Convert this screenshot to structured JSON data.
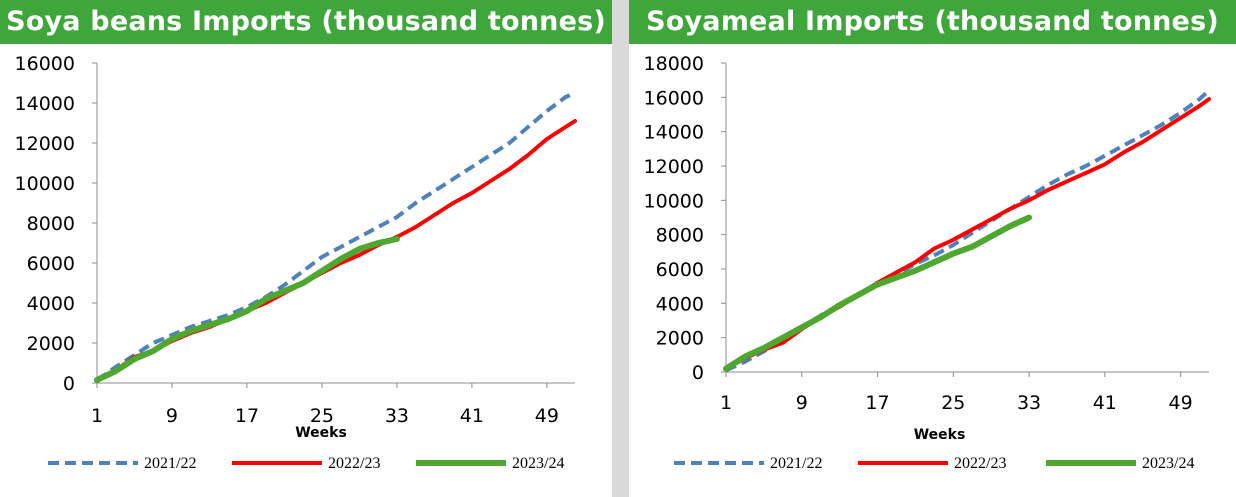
{
  "colors": {
    "title_bar": "#3ea63a",
    "divider": "#d9d9d9",
    "series_2021_22": "#4f81bd",
    "series_2022_23": "#ff0000",
    "series_2023_24": "#4ea72e"
  },
  "charts": [
    {
      "title": "Soya beans Imports (thousand tonnes)",
      "xlabel": "Weeks",
      "legend": [
        "2021/22",
        "2022/23",
        "2023/24"
      ]
    },
    {
      "title": "Soyameal Imports (thousand tonnes)",
      "xlabel": "Weeks",
      "legend": [
        "2021/22",
        "2022/23",
        "2023/24"
      ]
    }
  ],
  "chart_data": [
    {
      "type": "line",
      "title": "Soya beans Imports (thousand tonnes)",
      "xlabel": "Weeks",
      "ylabel": "",
      "xlim": [
        1,
        52
      ],
      "ylim": [
        0,
        16000
      ],
      "xticks": [
        1,
        9,
        17,
        25,
        33,
        41,
        49
      ],
      "yticks": [
        0,
        2000,
        4000,
        6000,
        8000,
        10000,
        12000,
        14000,
        16000
      ],
      "grid": false,
      "legend_position": "bottom",
      "series": [
        {
          "name": "2021/22",
          "style": "dashed",
          "x": [
            1,
            3,
            5,
            7,
            9,
            11,
            13,
            15,
            17,
            19,
            21,
            23,
            25,
            27,
            29,
            31,
            33,
            35,
            37,
            39,
            41,
            43,
            45,
            47,
            49,
            51,
            52
          ],
          "values": [
            150,
            800,
            1400,
            2000,
            2400,
            2800,
            3100,
            3400,
            3800,
            4300,
            4900,
            5600,
            6300,
            6800,
            7300,
            7800,
            8300,
            9000,
            9600,
            10200,
            10800,
            11400,
            12000,
            12800,
            13600,
            14300,
            14500
          ]
        },
        {
          "name": "2022/23",
          "style": "solid",
          "x": [
            1,
            3,
            5,
            7,
            9,
            11,
            13,
            15,
            17,
            19,
            21,
            23,
            25,
            27,
            29,
            31,
            33,
            35,
            37,
            39,
            41,
            43,
            45,
            47,
            49,
            51,
            52
          ],
          "values": [
            100,
            650,
            1300,
            1600,
            2100,
            2500,
            2800,
            3200,
            3600,
            4000,
            4500,
            5000,
            5500,
            6000,
            6400,
            6900,
            7300,
            7800,
            8400,
            9000,
            9500,
            10100,
            10700,
            11400,
            12200,
            12800,
            13100
          ]
        },
        {
          "name": "2023/24",
          "style": "solid",
          "x": [
            1,
            3,
            5,
            7,
            9,
            11,
            13,
            15,
            17,
            19,
            21,
            23,
            25,
            27,
            29,
            31,
            33
          ],
          "values": [
            150,
            600,
            1200,
            1600,
            2200,
            2600,
            2900,
            3200,
            3600,
            4200,
            4600,
            5000,
            5600,
            6200,
            6700,
            7000,
            7200
          ]
        }
      ]
    },
    {
      "type": "line",
      "title": "Soyameal Imports (thousand tonnes)",
      "xlabel": "Weeks",
      "ylabel": "",
      "xlim": [
        1,
        52
      ],
      "ylim": [
        0,
        18000
      ],
      "xticks": [
        1,
        9,
        17,
        25,
        33,
        41,
        49
      ],
      "yticks": [
        0,
        2000,
        4000,
        6000,
        8000,
        10000,
        12000,
        14000,
        16000,
        18000
      ],
      "grid": false,
      "legend_position": "bottom",
      "series": [
        {
          "name": "2021/22",
          "style": "dashed",
          "x": [
            1,
            3,
            5,
            7,
            9,
            11,
            13,
            15,
            17,
            19,
            21,
            23,
            25,
            27,
            29,
            31,
            33,
            35,
            37,
            39,
            41,
            43,
            45,
            47,
            49,
            51,
            52
          ],
          "values": [
            100,
            600,
            1200,
            2000,
            2600,
            3300,
            3900,
            4500,
            5100,
            5700,
            6300,
            6800,
            7400,
            8100,
            8800,
            9500,
            10200,
            10900,
            11500,
            12000,
            12600,
            13200,
            13800,
            14400,
            15100,
            15900,
            16400
          ]
        },
        {
          "name": "2022/23",
          "style": "solid",
          "x": [
            1,
            3,
            5,
            7,
            9,
            11,
            13,
            15,
            17,
            19,
            21,
            23,
            25,
            27,
            29,
            31,
            33,
            35,
            37,
            39,
            41,
            43,
            45,
            47,
            49,
            51,
            52
          ],
          "values": [
            200,
            800,
            1300,
            1700,
            2500,
            3200,
            3800,
            4500,
            5200,
            5800,
            6400,
            7200,
            7700,
            8300,
            8900,
            9500,
            10000,
            10600,
            11100,
            11600,
            12100,
            12800,
            13400,
            14100,
            14800,
            15500,
            15900
          ]
        },
        {
          "name": "2023/24",
          "style": "solid",
          "x": [
            1,
            3,
            5,
            7,
            9,
            11,
            13,
            15,
            17,
            19,
            21,
            23,
            25,
            27,
            29,
            31,
            33
          ],
          "values": [
            200,
            900,
            1400,
            2000,
            2600,
            3200,
            3900,
            4500,
            5100,
            5500,
            5900,
            6400,
            6900,
            7300,
            7900,
            8500,
            9000
          ]
        }
      ]
    }
  ]
}
